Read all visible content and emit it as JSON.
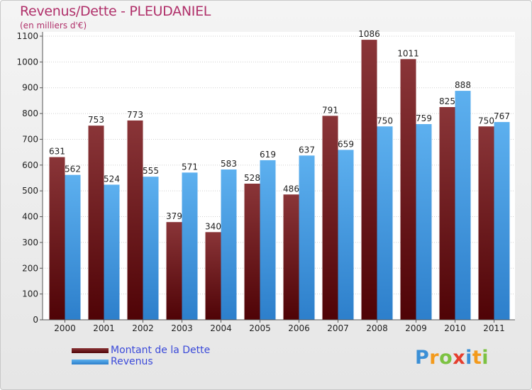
{
  "title": "Revenus/Dette - PLEUDANIEL",
  "subtitle": "(en milliers d'€)",
  "logo": {
    "letters": [
      "P",
      "r",
      "o",
      "x",
      "i",
      "t",
      "i"
    ],
    "colors": [
      "#3a8fd6",
      "#f39a1c",
      "#7cc242",
      "#e53e2e",
      "#3a8fd6",
      "#f39a1c",
      "#7cc242"
    ]
  },
  "chart_data": {
    "type": "bar",
    "title": "Revenus/Dette - PLEUDANIEL",
    "subtitle": "(en milliers d'€)",
    "categories": [
      "2000",
      "2001",
      "2002",
      "2003",
      "2004",
      "2005",
      "2006",
      "2007",
      "2008",
      "2009",
      "2010",
      "2011"
    ],
    "series": [
      {
        "name": "Montant de la Dette",
        "color": "#6b0f12",
        "values": [
          631,
          753,
          773,
          379,
          340,
          528,
          486,
          791,
          1086,
          1011,
          825,
          750
        ]
      },
      {
        "name": "Revenus",
        "color": "#3f9de3",
        "values": [
          562,
          524,
          555,
          571,
          583,
          619,
          637,
          659,
          750,
          759,
          888,
          767
        ]
      }
    ],
    "yticks": [
      0,
      100,
      200,
      300,
      400,
      500,
      600,
      700,
      800,
      900,
      1000,
      1100
    ],
    "ylim": [
      0,
      1100
    ],
    "grid": true,
    "legend_position": "bottom-left"
  }
}
